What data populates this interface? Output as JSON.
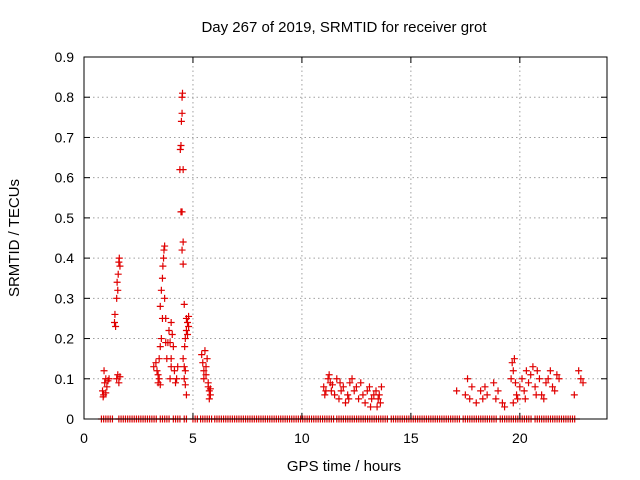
{
  "chart_data": {
    "type": "scatter",
    "title": "Day 267 of 2019, SRMTID for receiver grot",
    "xlabel": "GPS time / hours",
    "ylabel": "SRMTID / TECUs",
    "xlim": [
      0,
      24
    ],
    "ylim": [
      0,
      0.9
    ],
    "xticks": [
      0,
      5,
      10,
      15,
      20
    ],
    "xtick_labels": [
      "0",
      "5",
      "10",
      "15",
      "20"
    ],
    "yticks": [
      0,
      0.1,
      0.2,
      0.3,
      0.4,
      0.5,
      0.6,
      0.7,
      0.8,
      0.9
    ],
    "ytick_labels": [
      "0",
      "0.1",
      "0.2",
      "0.3",
      "0.4",
      "0.5",
      "0.6",
      "0.7",
      "0.8",
      "0.9"
    ],
    "grid": true,
    "marker": "+",
    "color": "#e00000",
    "series": [
      {
        "name": "SRMTID",
        "points": [
          [
            0.85,
            0.07
          ],
          [
            0.9,
            0.06
          ],
          [
            0.92,
            0.12
          ],
          [
            0.95,
            0.09
          ],
          [
            1.0,
            0.1
          ],
          [
            1.05,
            0.08
          ],
          [
            1.1,
            0.095
          ],
          [
            1.15,
            0.1
          ],
          [
            0.88,
            0.055
          ],
          [
            1.0,
            0.065
          ],
          [
            1.4,
            0.24
          ],
          [
            1.42,
            0.26
          ],
          [
            1.45,
            0.23
          ],
          [
            1.5,
            0.3
          ],
          [
            1.52,
            0.34
          ],
          [
            1.55,
            0.32
          ],
          [
            1.57,
            0.36
          ],
          [
            1.6,
            0.39
          ],
          [
            1.62,
            0.4
          ],
          [
            1.65,
            0.38
          ],
          [
            1.5,
            0.1
          ],
          [
            1.55,
            0.11
          ],
          [
            1.6,
            0.09
          ],
          [
            1.65,
            0.105
          ],
          [
            3.2,
            0.13
          ],
          [
            3.3,
            0.14
          ],
          [
            3.35,
            0.12
          ],
          [
            3.4,
            0.11
          ],
          [
            3.45,
            0.15
          ],
          [
            3.5,
            0.18
          ],
          [
            3.5,
            0.28
          ],
          [
            3.55,
            0.2
          ],
          [
            3.55,
            0.32
          ],
          [
            3.6,
            0.35
          ],
          [
            3.6,
            0.25
          ],
          [
            3.62,
            0.38
          ],
          [
            3.65,
            0.4
          ],
          [
            3.67,
            0.42
          ],
          [
            3.7,
            0.43
          ],
          [
            3.7,
            0.3
          ],
          [
            3.75,
            0.19
          ],
          [
            3.75,
            0.25
          ],
          [
            3.8,
            0.15
          ],
          [
            3.85,
            0.19
          ],
          [
            3.4,
            0.09
          ],
          [
            3.45,
            0.1
          ],
          [
            3.5,
            0.085
          ],
          [
            3.9,
            0.22
          ],
          [
            3.95,
            0.19
          ],
          [
            4.0,
            0.24
          ],
          [
            4.0,
            0.15
          ],
          [
            4.05,
            0.21
          ],
          [
            4.1,
            0.18
          ],
          [
            4.15,
            0.12
          ],
          [
            4.2,
            0.09
          ],
          [
            4.25,
            0.1
          ],
          [
            4.3,
            0.13
          ],
          [
            3.95,
            0.1
          ],
          [
            4.0,
            0.13
          ],
          [
            4.4,
            0.62
          ],
          [
            4.42,
            0.67
          ],
          [
            4.45,
            0.68
          ],
          [
            4.47,
            0.74
          ],
          [
            4.5,
            0.76
          ],
          [
            4.5,
            0.8
          ],
          [
            4.52,
            0.81
          ],
          [
            4.55,
            0.62
          ],
          [
            4.45,
            0.515
          ],
          [
            4.5,
            0.515
          ],
          [
            4.55,
            0.44
          ],
          [
            4.5,
            0.42
          ],
          [
            4.55,
            0.385
          ],
          [
            4.6,
            0.285
          ],
          [
            4.55,
            0.15
          ],
          [
            4.6,
            0.13
          ],
          [
            4.65,
            0.12
          ],
          [
            4.65,
            0.2
          ],
          [
            4.7,
            0.22
          ],
          [
            4.7,
            0.25
          ],
          [
            4.75,
            0.24
          ],
          [
            4.75,
            0.21
          ],
          [
            4.8,
            0.23
          ],
          [
            4.6,
            0.1
          ],
          [
            4.65,
            0.085
          ],
          [
            4.7,
            0.06
          ],
          [
            4.8,
            0.255
          ],
          [
            4.62,
            0.18
          ],
          [
            5.4,
            0.16
          ],
          [
            5.45,
            0.14
          ],
          [
            5.5,
            0.12
          ],
          [
            5.55,
            0.17
          ],
          [
            5.6,
            0.11
          ],
          [
            5.65,
            0.15
          ],
          [
            5.7,
            0.09
          ],
          [
            5.75,
            0.07
          ],
          [
            5.8,
            0.06
          ],
          [
            5.5,
            0.1
          ],
          [
            5.6,
            0.13
          ],
          [
            5.7,
            0.08
          ],
          [
            5.75,
            0.05
          ],
          [
            5.8,
            0.075
          ],
          [
            11.0,
            0.08
          ],
          [
            11.1,
            0.07
          ],
          [
            11.2,
            0.1
          ],
          [
            11.25,
            0.11
          ],
          [
            11.3,
            0.09
          ],
          [
            11.4,
            0.085
          ],
          [
            11.5,
            0.06
          ],
          [
            11.6,
            0.1
          ],
          [
            11.7,
            0.05
          ],
          [
            11.8,
            0.07
          ],
          [
            11.9,
            0.08
          ],
          [
            12.0,
            0.04
          ],
          [
            12.1,
            0.06
          ],
          [
            12.2,
            0.09
          ],
          [
            12.3,
            0.1
          ],
          [
            12.4,
            0.07
          ],
          [
            12.5,
            0.08
          ],
          [
            12.6,
            0.05
          ],
          [
            12.7,
            0.09
          ],
          [
            12.8,
            0.06
          ],
          [
            11.05,
            0.06
          ],
          [
            11.35,
            0.07
          ],
          [
            11.75,
            0.09
          ],
          [
            12.15,
            0.05
          ],
          [
            12.9,
            0.04
          ],
          [
            13.0,
            0.07
          ],
          [
            13.1,
            0.08
          ],
          [
            13.2,
            0.05
          ],
          [
            13.3,
            0.06
          ],
          [
            13.4,
            0.07
          ],
          [
            13.5,
            0.05
          ],
          [
            13.6,
            0.04
          ],
          [
            13.65,
            0.08
          ],
          [
            13.15,
            0.03
          ],
          [
            13.45,
            0.03
          ],
          [
            13.55,
            0.06
          ],
          [
            17.1,
            0.07
          ],
          [
            17.5,
            0.06
          ],
          [
            17.6,
            0.1
          ],
          [
            17.7,
            0.05
          ],
          [
            17.8,
            0.08
          ],
          [
            18.0,
            0.04
          ],
          [
            18.2,
            0.07
          ],
          [
            18.3,
            0.05
          ],
          [
            18.4,
            0.08
          ],
          [
            18.5,
            0.06
          ],
          [
            18.8,
            0.09
          ],
          [
            18.9,
            0.05
          ],
          [
            19.0,
            0.07
          ],
          [
            19.2,
            0.04
          ],
          [
            19.3,
            0.03
          ],
          [
            19.6,
            0.1
          ],
          [
            19.65,
            0.14
          ],
          [
            19.7,
            0.12
          ],
          [
            19.75,
            0.15
          ],
          [
            19.8,
            0.09
          ],
          [
            19.85,
            0.06
          ],
          [
            19.9,
            0.05
          ],
          [
            20.0,
            0.08
          ],
          [
            20.1,
            0.1
          ],
          [
            20.2,
            0.07
          ],
          [
            20.3,
            0.12
          ],
          [
            20.4,
            0.09
          ],
          [
            20.5,
            0.11
          ],
          [
            20.6,
            0.13
          ],
          [
            20.7,
            0.08
          ],
          [
            20.8,
            0.12
          ],
          [
            20.9,
            0.1
          ],
          [
            21.0,
            0.06
          ],
          [
            21.1,
            0.05
          ],
          [
            21.2,
            0.09
          ],
          [
            21.3,
            0.1
          ],
          [
            21.4,
            0.12
          ],
          [
            21.5,
            0.08
          ],
          [
            21.6,
            0.07
          ],
          [
            21.7,
            0.11
          ],
          [
            21.8,
            0.1
          ],
          [
            19.7,
            0.04
          ],
          [
            20.25,
            0.05
          ],
          [
            20.75,
            0.06
          ],
          [
            22.5,
            0.06
          ],
          [
            22.7,
            0.12
          ],
          [
            22.8,
            0.1
          ],
          [
            22.9,
            0.09
          ]
        ]
      }
    ],
    "zero_bands": [
      [
        0.8,
        1.4
      ],
      [
        1.6,
        3.4
      ],
      [
        3.5,
        4.0
      ],
      [
        4.1,
        4.5
      ],
      [
        4.6,
        4.8
      ],
      [
        5.0,
        5.3
      ],
      [
        5.35,
        5.9
      ],
      [
        6.0,
        11.5
      ],
      [
        11.6,
        14.0
      ],
      [
        14.1,
        17.3
      ],
      [
        17.4,
        19.0
      ],
      [
        19.1,
        20.6
      ],
      [
        20.7,
        22.6
      ]
    ]
  }
}
